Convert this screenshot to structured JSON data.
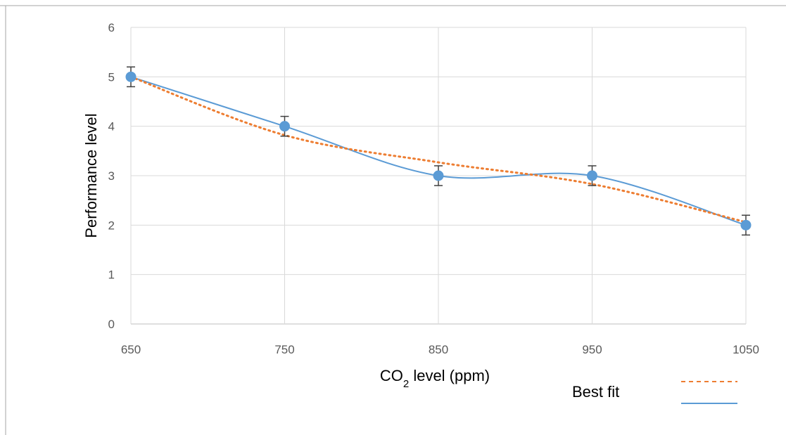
{
  "chart_data": {
    "type": "line",
    "title": "",
    "xlabel": "CO",
    "xlabel_subscript": "2",
    "xlabel_suffix": " level (ppm)",
    "ylabel": "Performance level",
    "x": [
      650,
      750,
      850,
      950,
      1050
    ],
    "x_ticks": [
      "650",
      "750",
      "850",
      "950",
      "1050"
    ],
    "y_ticks": [
      "0",
      "1",
      "2",
      "3",
      "4",
      "5",
      "6"
    ],
    "xlim": [
      650,
      1050
    ],
    "ylim": [
      0,
      6
    ],
    "grid": true,
    "series": [
      {
        "values": [
          5,
          4,
          3,
          3,
          2
        ],
        "error": [
          0.2,
          0.2,
          0.2,
          0.2,
          0.2
        ],
        "color": "#5B9BD5",
        "line_style": "smoothed"
      },
      {
        "name": "Best fit",
        "values": [
          5,
          3.82,
          3.27,
          2.83,
          2.06
        ],
        "color": "#ED7D31",
        "line_style": "dotted"
      }
    ],
    "legend": {
      "position": "bottom-right",
      "label": "Best fit"
    }
  },
  "colors": {
    "grid": "#D9D9D9",
    "frame": "#A6A6A6",
    "marker": "#5B9BD5",
    "fit": "#ED7D31",
    "errorbar": "#404040"
  }
}
